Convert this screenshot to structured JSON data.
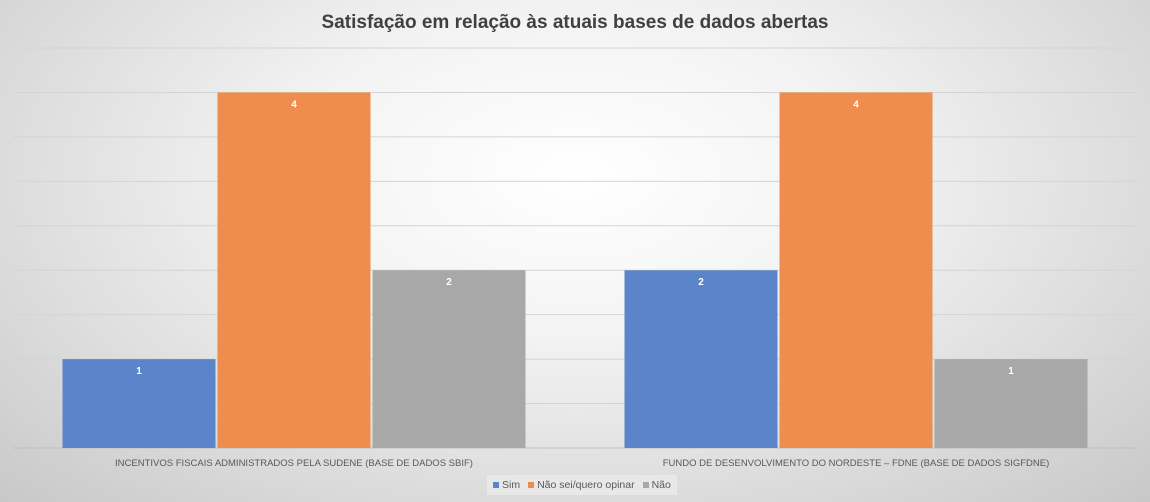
{
  "chart_data": {
    "type": "bar",
    "title": "Satisfação em relação às atuais bases de dados abertas",
    "categories": [
      "INCENTIVOS FISCAIS ADMINISTRADOS PELA SUDENE (BASE DE DADOS SBIF)",
      "FUNDO DE DESENVOLVIMENTO DO NORDESTE – FDNE (BASE DE DADOS SIGFDNE)"
    ],
    "series": [
      {
        "name": "Sim",
        "values": [
          1,
          2
        ],
        "color": "#5B84CA"
      },
      {
        "name": "Não sei/quero opinar",
        "values": [
          4,
          4
        ],
        "color": "#EE8D4E"
      },
      {
        "name": "Não",
        "values": [
          2,
          1
        ],
        "color": "#A8A8A8"
      }
    ],
    "xlabel": "",
    "ylabel": "",
    "ylim": [
      0,
      4.5
    ],
    "grid_step": 0.5,
    "grid": true,
    "y_tick_labels_shown": false,
    "legend_position": "bottom"
  }
}
